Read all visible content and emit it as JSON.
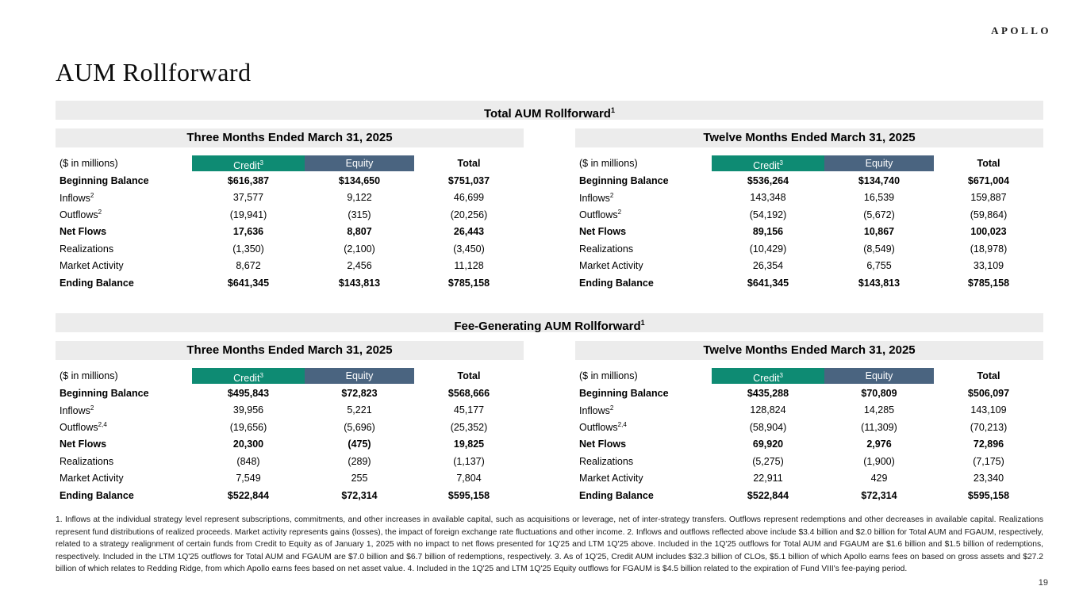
{
  "page": {
    "logo": "APOLLO",
    "title": "AUM Rollforward",
    "page_number": "19"
  },
  "colors": {
    "credit": "#0E8B73",
    "equity": "#4A6480",
    "band": "#ECECEC"
  },
  "sections": [
    {
      "title": "Total AUM Rollforward",
      "title_sup": "1",
      "tables": [
        {
          "period": "Three Months Ended March 31, 2025",
          "unit_label": "($ in millions)",
          "columns": [
            {
              "label": "Credit",
              "sup": "3",
              "chip": "credit"
            },
            {
              "label": "Equity",
              "sup": "",
              "chip": "equity"
            },
            {
              "label": "Total",
              "sup": "",
              "chip": ""
            }
          ],
          "rows": [
            {
              "label": "Beginning Balance",
              "sup": "",
              "bold": true,
              "values": [
                "$616,387",
                "$134,650",
                "$751,037"
              ]
            },
            {
              "label": "Inflows",
              "sup": "2",
              "bold": false,
              "values": [
                "37,577",
                "9,122",
                "46,699"
              ]
            },
            {
              "label": "Outflows",
              "sup": "2",
              "bold": false,
              "values": [
                "(19,941)",
                "(315)",
                "(20,256)"
              ]
            },
            {
              "label": "Net Flows",
              "sup": "",
              "bold": true,
              "values": [
                "17,636",
                "8,807",
                "26,443"
              ]
            },
            {
              "label": "Realizations",
              "sup": "",
              "bold": false,
              "values": [
                "(1,350)",
                "(2,100)",
                "(3,450)"
              ]
            },
            {
              "label": "Market Activity",
              "sup": "",
              "bold": false,
              "values": [
                "8,672",
                "2,456",
                "11,128"
              ]
            },
            {
              "label": "Ending Balance",
              "sup": "",
              "bold": true,
              "values": [
                "$641,345",
                "$143,813",
                "$785,158"
              ]
            }
          ]
        },
        {
          "period": "Twelve Months Ended March 31, 2025",
          "unit_label": "($ in millions)",
          "columns": [
            {
              "label": "Credit",
              "sup": "3",
              "chip": "credit"
            },
            {
              "label": "Equity",
              "sup": "",
              "chip": "equity"
            },
            {
              "label": "Total",
              "sup": "",
              "chip": ""
            }
          ],
          "rows": [
            {
              "label": "Beginning Balance",
              "sup": "",
              "bold": true,
              "values": [
                "$536,264",
                "$134,740",
                "$671,004"
              ]
            },
            {
              "label": "Inflows",
              "sup": "2",
              "bold": false,
              "values": [
                "143,348",
                "16,539",
                "159,887"
              ]
            },
            {
              "label": "Outflows",
              "sup": "2",
              "bold": false,
              "values": [
                "(54,192)",
                "(5,672)",
                "(59,864)"
              ]
            },
            {
              "label": "Net Flows",
              "sup": "",
              "bold": true,
              "values": [
                "89,156",
                "10,867",
                "100,023"
              ]
            },
            {
              "label": "Realizations",
              "sup": "",
              "bold": false,
              "values": [
                "(10,429)",
                "(8,549)",
                "(18,978)"
              ]
            },
            {
              "label": "Market Activity",
              "sup": "",
              "bold": false,
              "values": [
                "26,354",
                "6,755",
                "33,109"
              ]
            },
            {
              "label": "Ending Balance",
              "sup": "",
              "bold": true,
              "values": [
                "$641,345",
                "$143,813",
                "$785,158"
              ]
            }
          ]
        }
      ]
    },
    {
      "title": "Fee-Generating AUM Rollforward",
      "title_sup": "1",
      "tables": [
        {
          "period": "Three Months Ended March 31, 2025",
          "unit_label": "($ in millions)",
          "columns": [
            {
              "label": "Credit",
              "sup": "3",
              "chip": "credit"
            },
            {
              "label": "Equity",
              "sup": "",
              "chip": "equity"
            },
            {
              "label": "Total",
              "sup": "",
              "chip": ""
            }
          ],
          "rows": [
            {
              "label": "Beginning Balance",
              "sup": "",
              "bold": true,
              "values": [
                "$495,843",
                "$72,823",
                "$568,666"
              ]
            },
            {
              "label": "Inflows",
              "sup": "2",
              "bold": false,
              "values": [
                "39,956",
                "5,221",
                "45,177"
              ]
            },
            {
              "label": "Outflows",
              "sup": "2,4",
              "bold": false,
              "values": [
                "(19,656)",
                "(5,696)",
                "(25,352)"
              ]
            },
            {
              "label": "Net Flows",
              "sup": "",
              "bold": true,
              "values": [
                "20,300",
                "(475)",
                "19,825"
              ]
            },
            {
              "label": "Realizations",
              "sup": "",
              "bold": false,
              "values": [
                "(848)",
                "(289)",
                "(1,137)"
              ]
            },
            {
              "label": "Market Activity",
              "sup": "",
              "bold": false,
              "values": [
                "7,549",
                "255",
                "7,804"
              ]
            },
            {
              "label": "Ending Balance",
              "sup": "",
              "bold": true,
              "values": [
                "$522,844",
                "$72,314",
                "$595,158"
              ]
            }
          ]
        },
        {
          "period": "Twelve Months Ended March 31, 2025",
          "unit_label": "($ in millions)",
          "columns": [
            {
              "label": "Credit",
              "sup": "3",
              "chip": "credit"
            },
            {
              "label": "Equity",
              "sup": "",
              "chip": "equity"
            },
            {
              "label": "Total",
              "sup": "",
              "chip": ""
            }
          ],
          "rows": [
            {
              "label": "Beginning Balance",
              "sup": "",
              "bold": true,
              "values": [
                "$435,288",
                "$70,809",
                "$506,097"
              ]
            },
            {
              "label": "Inflows",
              "sup": "2",
              "bold": false,
              "values": [
                "128,824",
                "14,285",
                "143,109"
              ]
            },
            {
              "label": "Outflows",
              "sup": "2,4",
              "bold": false,
              "values": [
                "(58,904)",
                "(11,309)",
                "(70,213)"
              ]
            },
            {
              "label": "Net Flows",
              "sup": "",
              "bold": true,
              "values": [
                "69,920",
                "2,976",
                "72,896"
              ]
            },
            {
              "label": "Realizations",
              "sup": "",
              "bold": false,
              "values": [
                "(5,275)",
                "(1,900)",
                "(7,175)"
              ]
            },
            {
              "label": "Market Activity",
              "sup": "",
              "bold": false,
              "values": [
                "22,911",
                "429",
                "23,340"
              ]
            },
            {
              "label": "Ending Balance",
              "sup": "",
              "bold": true,
              "values": [
                "$522,844",
                "$72,314",
                "$595,158"
              ]
            }
          ]
        }
      ]
    }
  ],
  "footnotes": {
    "text": "1. Inflows at the individual strategy level represent subscriptions, commitments, and other increases in available capital, such as acquisitions or leverage, net of inter-strategy transfers. Outflows represent redemptions and other decreases in available capital. Realizations represent fund distributions of realized proceeds. Market activity represents gains (losses), the impact of foreign exchange rate fluctuations and other income. 2. Inflows and outflows reflected above include $3.4 billion and $2.0 billion for Total AUM and FGAUM, respectively, related to a strategy realignment of certain funds from Credit to Equity as of January 1, 2025 with no impact to net flows presented for 1Q'25 and LTM 1Q'25 above. Included in the 1Q'25 outflows for Total AUM and FGAUM are $1.6 billion and $1.5 billion of redemptions, respectively. Included in the LTM 1Q'25 outflows for Total AUM and FGAUM are $7.0 billion and $6.7 billion of redemptions, respectively. 3. As of 1Q'25, Credit AUM includes $32.3 billion of CLOs, $5.1 billion of which Apollo earns fees on based on gross assets and $27.2 billion of which relates to Redding Ridge, from which Apollo earns fees based on net asset value. 4. Included in the 1Q'25 and LTM 1Q'25 Equity outflows for FGAUM is $4.5 billion related to the expiration of Fund VIII's fee-paying period."
  }
}
